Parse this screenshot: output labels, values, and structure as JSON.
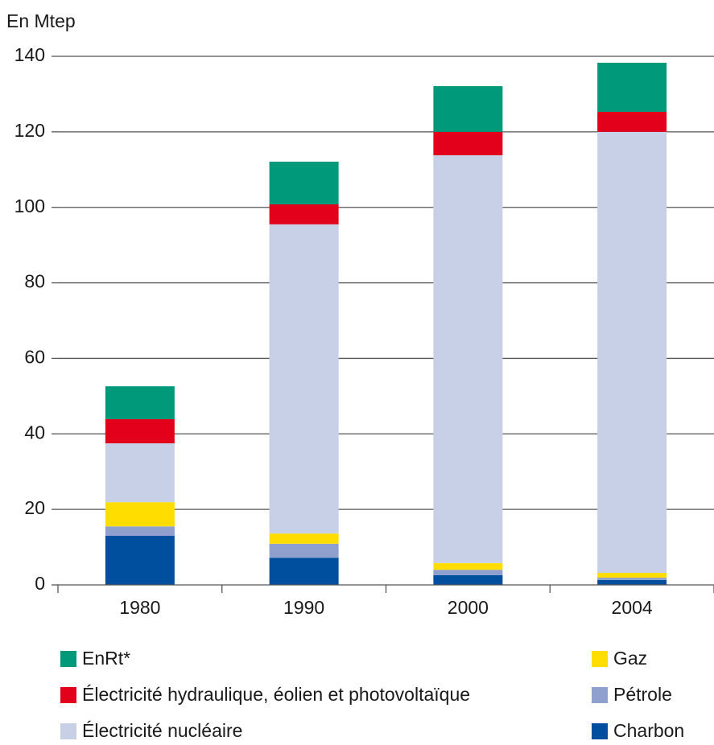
{
  "chart_data": {
    "type": "stacked_bar",
    "y_axis_label": "En Mtep",
    "categories": [
      "1980",
      "1990",
      "2000",
      "2004"
    ],
    "series": [
      {
        "name": "Charbon",
        "color": "#004f9f",
        "values": [
          13.0,
          7.2,
          2.6,
          1.3
        ]
      },
      {
        "name": "Pétrole",
        "color": "#8fa0cf",
        "values": [
          2.5,
          3.7,
          1.4,
          0.6
        ]
      },
      {
        "name": "Gaz",
        "color": "#ffdd00",
        "values": [
          6.4,
          2.7,
          1.8,
          1.3
        ]
      },
      {
        "name": "Électricité nucléaire",
        "color": "#c8d0e8",
        "values": [
          15.6,
          81.9,
          108.0,
          116.8
        ]
      },
      {
        "name": "Électricité hydraulique, éolien et photovoltaïque",
        "color": "#e2001a",
        "values": [
          6.4,
          5.3,
          6.2,
          5.3
        ]
      },
      {
        "name": "EnRt*",
        "color": "#009a7a",
        "values": [
          8.7,
          11.3,
          12.1,
          13.0
        ]
      }
    ],
    "ylim": [
      0,
      140
    ],
    "yticks": [
      0,
      20,
      40,
      60,
      80,
      100,
      120,
      140
    ],
    "grid": true
  }
}
